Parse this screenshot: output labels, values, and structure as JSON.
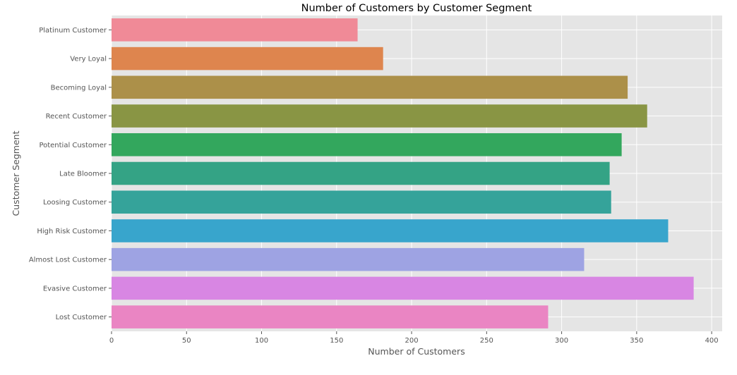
{
  "chart_data": {
    "type": "bar",
    "orientation": "horizontal",
    "title": "Number of Customers by Customer Segment",
    "xlabel": "Number of Customers",
    "ylabel": "Customer Segment",
    "xlim": [
      0,
      407
    ],
    "xticks": [
      0,
      50,
      100,
      150,
      200,
      250,
      300,
      350,
      400
    ],
    "grid": true,
    "categories": [
      "Platinum Customer",
      "Very Loyal",
      "Becoming Loyal",
      "Recent Customer",
      "Potential Customer",
      "Late Bloomer",
      "Loosing Customer",
      "High Risk Customer",
      "Almost Lost Customer",
      "Evasive Customer",
      "Lost Customer"
    ],
    "values": [
      164,
      181,
      344,
      357,
      340,
      332,
      333,
      371,
      315,
      388,
      291
    ],
    "colors": [
      "#f08a97",
      "#de854e",
      "#ac9049",
      "#899544",
      "#33a75d",
      "#34a385",
      "#35a39a",
      "#38a5cc",
      "#9ea3e3",
      "#d886e3",
      "#ea85c3"
    ]
  }
}
